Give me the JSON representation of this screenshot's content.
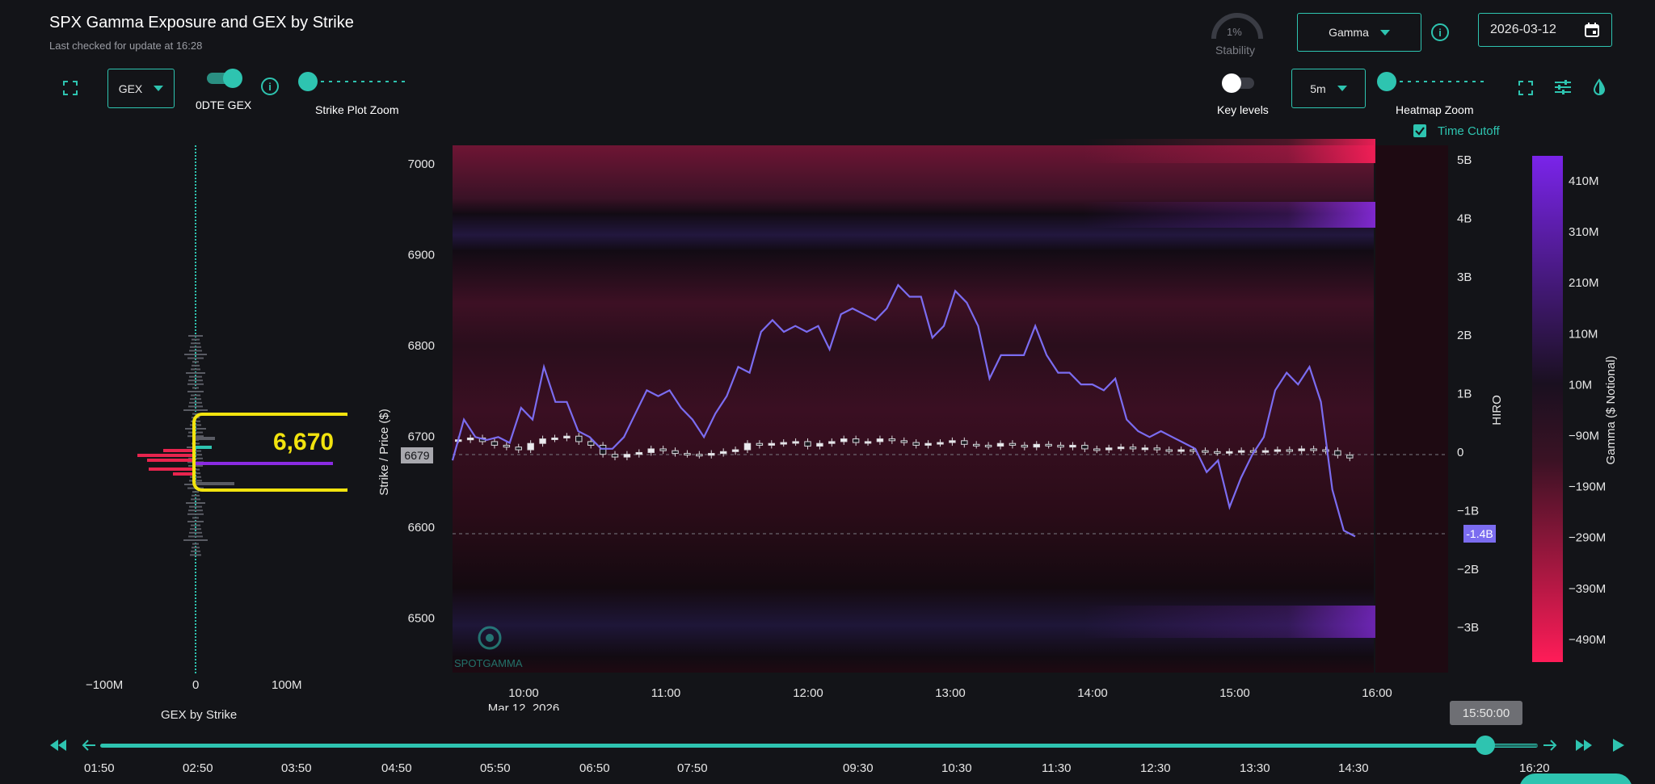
{
  "header": {
    "title": "SPX Gamma Exposure and GEX by Strike",
    "subtitle": "Last checked for update at 16:28"
  },
  "stability": {
    "value": "1%",
    "label": "Stability"
  },
  "mode_select": {
    "value": "Gamma"
  },
  "date_field": {
    "value": "2026-03-12"
  },
  "left_controls": {
    "gex_select": "GEX",
    "toggle_label": "0DTE GEX",
    "zoom_label": "Strike Plot Zoom"
  },
  "right_controls": {
    "key_levels_label": "Key levels",
    "interval_select": "5m",
    "zoom_label": "Heatmap Zoom",
    "time_cutoff_label": "Time Cutoff"
  },
  "gex_panel": {
    "xlabel": "GEX by Strike",
    "ticks": [
      "−100M",
      "0",
      "100M"
    ],
    "callout": "6,670"
  },
  "chart_data": {
    "type": "heatmap",
    "ylabel_left": "Strike / Price ($)",
    "ylabel_right": "HIRO",
    "y_ticks_left": [
      "7000",
      "6900",
      "6800",
      "6700",
      "6600",
      "6500"
    ],
    "y_ticks_right": [
      "5B",
      "4B",
      "3B",
      "2B",
      "1B",
      "0",
      "−1B",
      "−2B",
      "−3B"
    ],
    "x_ticks": [
      "10:00",
      "11:00",
      "12:00",
      "13:00",
      "14:00",
      "15:00",
      "16:00"
    ],
    "x_date": "Mar 12, 2026",
    "price_marker": "6679",
    "hiro_marker": "-1.4B",
    "watermark": "SPOTGAMMA",
    "colorbar_title": "Gamma ($ Notional)",
    "colorbar_ticks": [
      "410M",
      "310M",
      "210M",
      "110M",
      "10M",
      "−90M",
      "−190M",
      "−290M",
      "−390M",
      "−490M"
    ],
    "hiro_series": [
      -0.1,
      0.6,
      0.3,
      0.25,
      0.3,
      0.2,
      0.8,
      0.6,
      1.5,
      0.9,
      0.9,
      0.4,
      0.3,
      0.1,
      0.1,
      0.3,
      0.7,
      1.1,
      1.0,
      1.1,
      0.8,
      0.6,
      0.3,
      0.7,
      1.0,
      1.5,
      1.4,
      2.1,
      2.3,
      2.1,
      2.2,
      2.1,
      2.2,
      1.8,
      2.4,
      2.5,
      2.4,
      2.3,
      2.5,
      2.9,
      2.7,
      2.7,
      2.0,
      2.2,
      2.8,
      2.6,
      2.2,
      1.3,
      1.7,
      1.7,
      1.7,
      2.2,
      1.7,
      1.4,
      1.4,
      1.2,
      1.2,
      1.1,
      1.3,
      0.6,
      0.4,
      0.3,
      0.4,
      0.3,
      0.2,
      0.1,
      -0.3,
      -0.1,
      -0.9,
      -0.4,
      0.0,
      0.3,
      1.1,
      1.4,
      1.2,
      1.5,
      0.9,
      -0.6,
      -1.3,
      -1.4
    ],
    "candles_close": [
      6696,
      6698,
      6694,
      6690,
      6688,
      6685,
      6692,
      6697,
      6698,
      6700,
      6694,
      6690,
      6680,
      6677,
      6680,
      6682,
      6686,
      6684,
      6681,
      6680,
      6679,
      6681,
      6683,
      6685,
      6692,
      6690,
      6692,
      6693,
      6694,
      6689,
      6692,
      6694,
      6697,
      6693,
      6694,
      6697,
      6695,
      6693,
      6690,
      6692,
      6693,
      6695,
      6691,
      6690,
      6689,
      6692,
      6690,
      6688,
      6691,
      6690,
      6688,
      6690,
      6686,
      6685,
      6687,
      6688,
      6686,
      6687,
      6685,
      6684,
      6685,
      6684,
      6683,
      6682,
      6683,
      6684,
      6683,
      6684,
      6685,
      6684,
      6686,
      6685,
      6684,
      6679,
      6676
    ],
    "time_cursor": "15:50:00"
  },
  "timeline": {
    "labels": [
      "01:50",
      "02:50",
      "03:50",
      "04:50",
      "05:50",
      "06:50",
      "07:50",
      "09:30",
      "10:30",
      "11:30",
      "12:30",
      "13:30",
      "14:30",
      "16:20"
    ],
    "progress": 0.945
  }
}
